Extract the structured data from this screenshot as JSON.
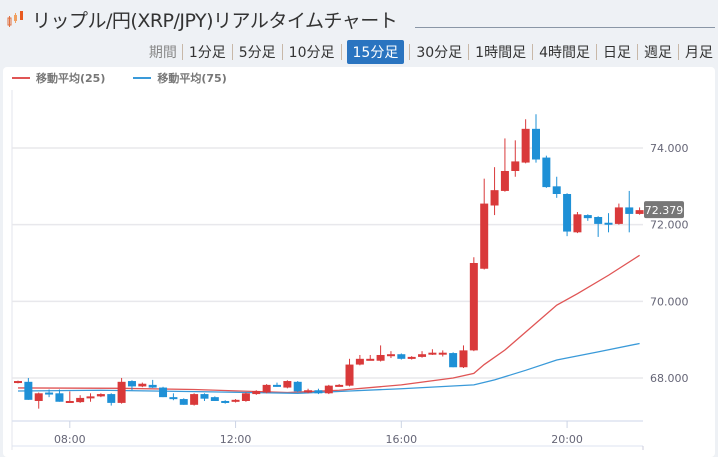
{
  "header": {
    "title": "リップル/円(XRP/JPY)リアルタイムチャート",
    "logo_icon": "candlestick-logo-icon"
  },
  "period_tabs": {
    "label": "期間",
    "items": [
      "1分足",
      "5分足",
      "10分足",
      "15分足",
      "30分足",
      "1時間足",
      "4時間足",
      "日足",
      "週足",
      "月足"
    ],
    "active": "15分足"
  },
  "legend": [
    {
      "label": "移動平均(25)",
      "color": "#e05555"
    },
    {
      "label": "移動平均(75)",
      "color": "#3a9ad9"
    }
  ],
  "colors": {
    "up": "#d9393a",
    "down": "#1e90d6",
    "grid": "#e8e8ec"
  },
  "chart_data": {
    "type": "candlestick",
    "interval": "15m",
    "start_time": "06:45",
    "y_ticks": [
      "68.000",
      "70.000",
      "72.000",
      "74.000"
    ],
    "y_tick_values": [
      68,
      70,
      72,
      74
    ],
    "x_ticks": [
      {
        "label": "08:00",
        "index": 5
      },
      {
        "label": "12:00",
        "index": 21
      },
      {
        "label": "16:00",
        "index": 37
      },
      {
        "label": "20:00",
        "index": 53
      }
    ],
    "ylim": [
      66.9,
      75.4
    ],
    "last_price": "72.379",
    "ohlc": [
      [
        67.88,
        67.93,
        67.86,
        67.92
      ],
      [
        67.9,
        68.0,
        67.43,
        67.43
      ],
      [
        67.4,
        67.62,
        67.2,
        67.6
      ],
      [
        67.62,
        67.7,
        67.5,
        67.58
      ],
      [
        67.6,
        67.7,
        67.38,
        67.38
      ],
      [
        67.38,
        67.65,
        67.36,
        67.4
      ],
      [
        67.37,
        67.55,
        67.35,
        67.48
      ],
      [
        67.48,
        67.6,
        67.38,
        67.52
      ],
      [
        67.52,
        67.6,
        67.5,
        67.58
      ],
      [
        67.58,
        67.6,
        67.28,
        67.35
      ],
      [
        67.35,
        68.0,
        67.33,
        67.9
      ],
      [
        67.92,
        67.94,
        67.68,
        67.78
      ],
      [
        67.78,
        67.88,
        67.76,
        67.85
      ],
      [
        67.82,
        67.95,
        67.74,
        67.75
      ],
      [
        67.75,
        67.77,
        67.5,
        67.5
      ],
      [
        67.5,
        67.6,
        67.42,
        67.45
      ],
      [
        67.45,
        67.47,
        67.3,
        67.3
      ],
      [
        67.3,
        67.6,
        67.28,
        67.58
      ],
      [
        67.58,
        67.6,
        67.4,
        67.46
      ],
      [
        67.5,
        67.52,
        67.4,
        67.4
      ],
      [
        67.4,
        67.42,
        67.33,
        67.38
      ],
      [
        67.38,
        67.45,
        67.36,
        67.43
      ],
      [
        67.4,
        67.62,
        67.38,
        67.6
      ],
      [
        67.58,
        67.68,
        67.56,
        67.66
      ],
      [
        67.62,
        67.84,
        67.6,
        67.82
      ],
      [
        67.82,
        67.88,
        67.77,
        67.78
      ],
      [
        67.75,
        67.94,
        67.73,
        67.92
      ],
      [
        67.9,
        67.92,
        67.63,
        67.65
      ],
      [
        67.62,
        67.72,
        67.6,
        67.68
      ],
      [
        67.68,
        67.72,
        67.58,
        67.6
      ],
      [
        67.6,
        67.82,
        67.58,
        67.8
      ],
      [
        67.8,
        67.84,
        67.78,
        67.82
      ],
      [
        67.8,
        68.5,
        67.78,
        68.35
      ],
      [
        68.35,
        68.6,
        68.33,
        68.5
      ],
      [
        68.48,
        68.6,
        68.46,
        68.5
      ],
      [
        68.45,
        68.85,
        68.43,
        68.6
      ],
      [
        68.58,
        68.7,
        68.52,
        68.62
      ],
      [
        68.62,
        68.64,
        68.48,
        68.5
      ],
      [
        68.5,
        68.57,
        68.48,
        68.55
      ],
      [
        68.55,
        68.7,
        68.53,
        68.62
      ],
      [
        68.62,
        68.75,
        68.6,
        68.66
      ],
      [
        68.64,
        68.72,
        68.56,
        68.66
      ],
      [
        68.65,
        68.67,
        68.28,
        68.28
      ],
      [
        68.28,
        68.85,
        68.26,
        68.72
      ],
      [
        68.72,
        71.15,
        68.7,
        71.0
      ],
      [
        70.85,
        73.2,
        70.83,
        72.55
      ],
      [
        72.5,
        73.5,
        72.25,
        72.9
      ],
      [
        72.88,
        74.25,
        72.86,
        73.4
      ],
      [
        73.4,
        74.2,
        73.25,
        73.65
      ],
      [
        73.62,
        74.75,
        73.6,
        74.5
      ],
      [
        74.5,
        74.88,
        73.62,
        73.7
      ],
      [
        73.75,
        73.8,
        72.96,
        72.98
      ],
      [
        73.0,
        73.25,
        72.7,
        72.8
      ],
      [
        72.8,
        72.82,
        71.7,
        71.82
      ],
      [
        71.8,
        72.33,
        71.78,
        72.27
      ],
      [
        72.25,
        72.27,
        72.1,
        72.17
      ],
      [
        72.2,
        72.22,
        71.68,
        72.02
      ],
      [
        72.05,
        72.3,
        71.8,
        72.03
      ],
      [
        72.02,
        72.55,
        72.0,
        72.45
      ],
      [
        72.45,
        72.88,
        71.8,
        72.28
      ],
      [
        72.28,
        72.45,
        72.26,
        72.379
      ]
    ],
    "series": [
      {
        "name": "移動平均(25)",
        "points": [
          [
            0,
            67.74
          ],
          [
            10,
            67.73
          ],
          [
            17,
            67.7
          ],
          [
            26,
            67.62
          ],
          [
            31,
            67.68
          ],
          [
            37,
            67.82
          ],
          [
            42,
            68.0
          ],
          [
            44,
            68.12
          ],
          [
            45,
            68.35
          ],
          [
            47,
            68.73
          ],
          [
            50,
            69.43
          ],
          [
            52,
            69.9
          ],
          [
            54,
            70.2
          ],
          [
            57,
            70.68
          ],
          [
            60,
            71.2
          ]
        ]
      },
      {
        "name": "移動平均(75)",
        "points": [
          [
            0,
            67.66
          ],
          [
            8,
            67.68
          ],
          [
            18,
            67.64
          ],
          [
            27,
            67.6
          ],
          [
            32,
            67.66
          ],
          [
            37,
            67.72
          ],
          [
            44,
            67.82
          ],
          [
            46,
            67.95
          ],
          [
            49,
            68.2
          ],
          [
            52,
            68.47
          ],
          [
            56,
            68.68
          ],
          [
            60,
            68.9
          ]
        ]
      }
    ]
  }
}
